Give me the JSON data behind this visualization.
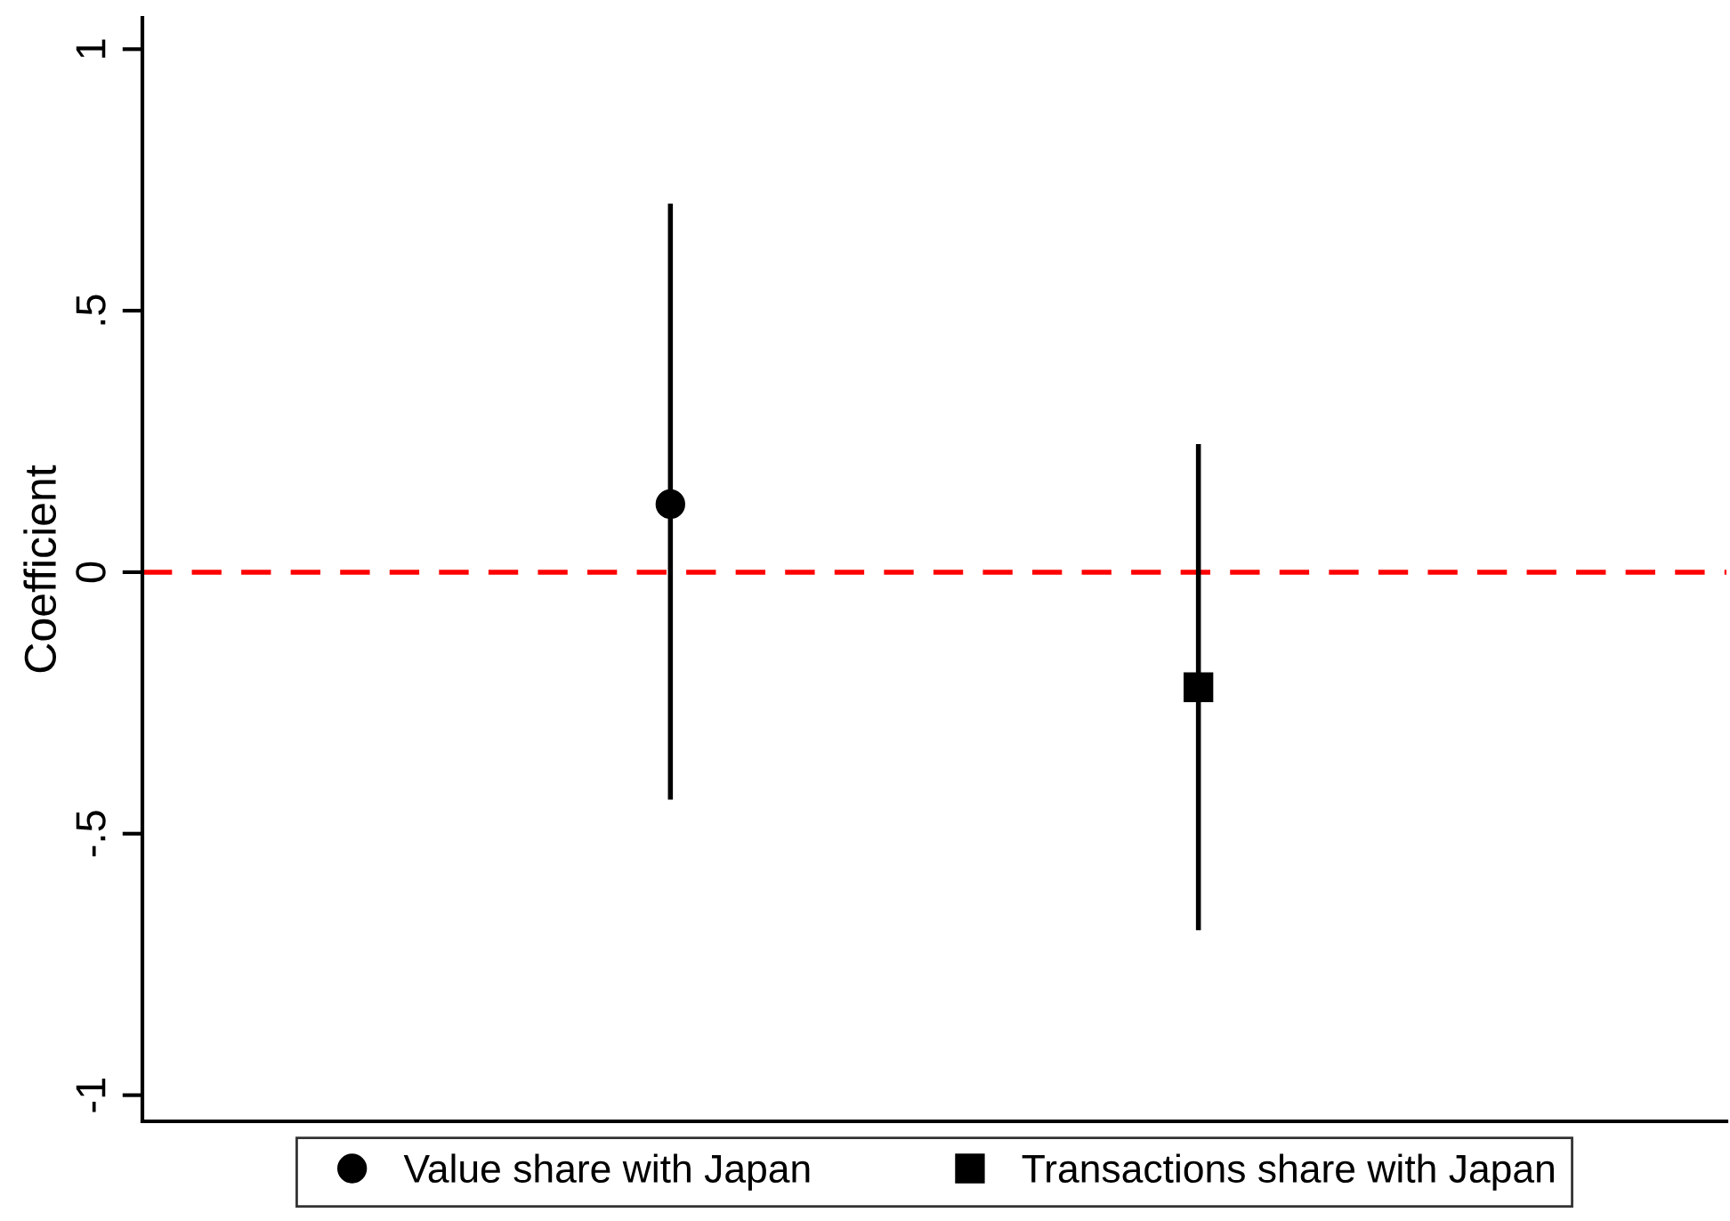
{
  "chart_data": {
    "type": "scatter",
    "ylabel": "Coefficient",
    "categories": [
      null,
      null
    ],
    "series": [
      {
        "name": "Value share with Japan",
        "color": "#000000",
        "marker": "circle",
        "values": [
          0.13,
          null
        ],
        "errors": [
          [
            -0.43,
            0.7
          ],
          null
        ]
      },
      {
        "name": "Transactions share with Japan",
        "color": "#000000",
        "marker": "square",
        "values": [
          null,
          -0.22
        ],
        "errors": [
          null,
          [
            -0.68,
            0.24
          ]
        ]
      }
    ],
    "ylim": [
      -1.05,
      1.06
    ],
    "yticks": [
      {
        "value": -1,
        "label": "-1"
      },
      {
        "value": -0.5,
        "label": "-.5"
      },
      0,
      {
        "value": 0.5,
        "label": ".5"
      },
      1
    ],
    "ref_lines": [
      {
        "axis": "y",
        "value": 0,
        "color": "#ff0000",
        "line_style": "dashed"
      }
    ],
    "tick_labels": "y",
    "grid": false,
    "legend": "bottom"
  }
}
